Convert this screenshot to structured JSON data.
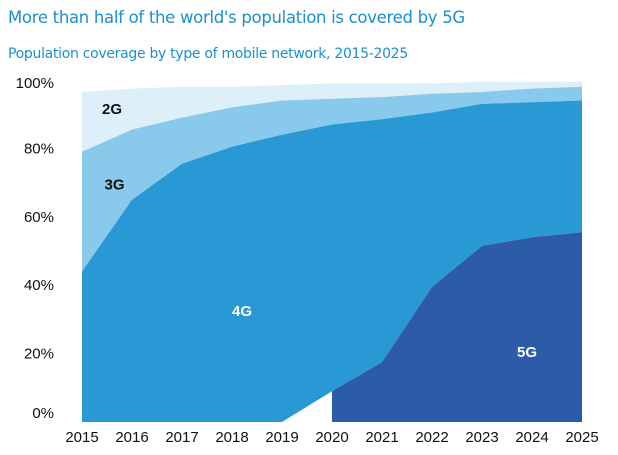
{
  "chart_data": {
    "type": "area",
    "stacked": true,
    "title": "More than half of the world's population is covered by 5G",
    "subtitle": "Population coverage by type of mobile network, 2015-2025",
    "xlabel": "",
    "ylabel": "",
    "x": [
      2015,
      2016,
      2017,
      2018,
      2019,
      2020,
      2021,
      2022,
      2023,
      2024,
      2025
    ],
    "x_tick_labels": [
      "2015",
      "2016",
      "2017",
      "2018",
      "2019",
      "2020",
      "2021",
      "2022",
      "2023",
      "2024",
      "2025"
    ],
    "y_tick_labels": [
      "0%",
      "20%",
      "40%",
      "60%",
      "80%",
      "100%"
    ],
    "y_ticks": [
      0,
      20,
      40,
      60,
      80,
      100
    ],
    "ylim": [
      0,
      100
    ],
    "grid": false,
    "legend": "inline-labels",
    "units": "percent of world population (cumulative stacked)",
    "series": [
      {
        "name": "5G",
        "color": "#2c5ca8",
        "label_color": "#ffffff",
        "start_x": 2020,
        "values": [
          null,
          null,
          null,
          null,
          null,
          9,
          17.5,
          39.5,
          51.5,
          54,
          55.5
        ]
      },
      {
        "name": "4G",
        "color": "#2899d4",
        "label_color": "#ffffff",
        "values": [
          44,
          65,
          75.5,
          80.5,
          84,
          78,
          71,
          51,
          41.5,
          39.5,
          38.5
        ]
      },
      {
        "name": "3G",
        "color": "#89c9ec",
        "label_color": "#111111",
        "values": [
          35,
          20.5,
          13.5,
          11.5,
          10,
          7.5,
          6.5,
          5.5,
          3.5,
          4,
          4
        ]
      },
      {
        "name": "2G",
        "color": "#ddeff8",
        "label_color": "#111111",
        "values": [
          17.5,
          12,
          9,
          6,
          4.5,
          4.5,
          4,
          3,
          3,
          2,
          1.5
        ]
      }
    ],
    "cumulative_tops": {
      "5G": [
        null,
        null,
        null,
        null,
        null,
        9,
        17.5,
        39.5,
        51.5,
        54,
        55.5
      ],
      "4G": [
        44,
        65,
        75.5,
        80.5,
        84,
        87,
        88.5,
        90.5,
        93,
        93.5,
        94
      ],
      "3G": [
        79,
        85.5,
        89,
        92,
        94,
        94.5,
        95,
        96,
        96.5,
        97.5,
        98
      ],
      "2G": [
        96.5,
        97.5,
        98,
        98,
        98.5,
        99,
        99,
        99,
        99.5,
        99.5,
        99.5
      ]
    },
    "inline_labels": [
      {
        "series": "2G",
        "text": "2G",
        "x": 2015.4,
        "y": 90
      },
      {
        "series": "3G",
        "text": "3G",
        "x": 2015.45,
        "y": 68
      },
      {
        "series": "4G",
        "text": "4G",
        "x": 2018.0,
        "y": 31
      },
      {
        "series": "5G",
        "text": "5G",
        "x": 2023.7,
        "y": 19
      }
    ]
  }
}
